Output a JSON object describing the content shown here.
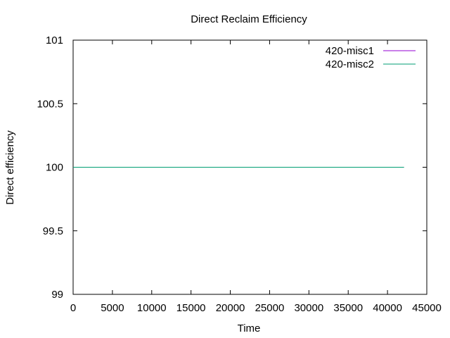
{
  "chart_data": {
    "type": "line",
    "title": "Direct Reclaim Efficiency",
    "xlabel": "Time",
    "ylabel": "Direct efficiency",
    "xlim": [
      0,
      45000
    ],
    "ylim": [
      99,
      101
    ],
    "xticks": [
      0,
      5000,
      10000,
      15000,
      20000,
      25000,
      30000,
      35000,
      40000,
      45000
    ],
    "yticks": [
      99,
      99.5,
      100,
      100.5,
      101
    ],
    "xtick_labels": [
      "0",
      "5000",
      "10000",
      "15000",
      "20000",
      "25000",
      "30000",
      "35000",
      "40000",
      "45000"
    ],
    "ytick_labels": [
      "99",
      "99.5",
      "100",
      "100.5",
      "101"
    ],
    "grid": false,
    "legend": "top-right",
    "series": [
      {
        "name": "420-misc1",
        "color": "#9400d3",
        "x": [
          0,
          42100
        ],
        "y": [
          100,
          100
        ]
      },
      {
        "name": "420-misc2",
        "color": "#009e73",
        "x": [
          0,
          42100
        ],
        "y": [
          100,
          100
        ]
      }
    ]
  }
}
